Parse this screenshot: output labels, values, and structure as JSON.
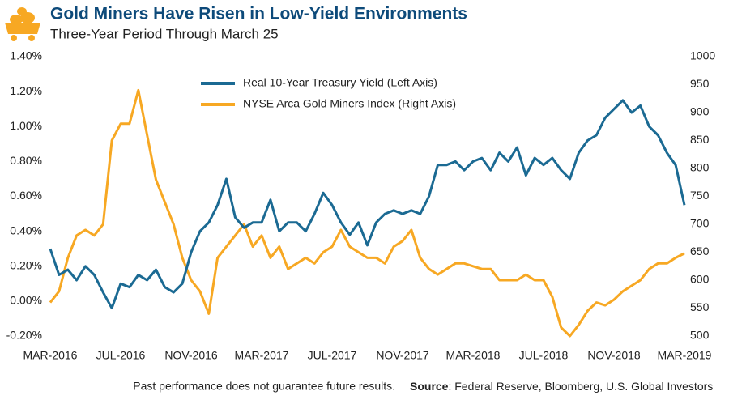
{
  "chart_data": {
    "type": "line",
    "title": "Gold Miners Have Risen in Low-Yield Environments",
    "subtitle": "Three-Year Period Through March 25",
    "footer_note": "Past performance does not guarantee future results.",
    "source_label": "Source",
    "source_text": ": Federal Reserve, Bloomberg, U.S. Global Investors",
    "categories": [
      "MAR-2016",
      null,
      null,
      null,
      null,
      null,
      null,
      null,
      "JUL-2016",
      null,
      null,
      null,
      null,
      null,
      null,
      null,
      "NOV-2016",
      null,
      null,
      null,
      null,
      null,
      null,
      null,
      "MAR-2017",
      null,
      null,
      null,
      null,
      null,
      null,
      null,
      "JUL-2017",
      null,
      null,
      null,
      null,
      null,
      null,
      null,
      "NOV-2017",
      null,
      null,
      null,
      null,
      null,
      null,
      null,
      "MAR-2018",
      null,
      null,
      null,
      null,
      null,
      null,
      null,
      "JUL-2018",
      null,
      null,
      null,
      null,
      null,
      null,
      null,
      "NOV-2018",
      null,
      null,
      null,
      null,
      null,
      null,
      null,
      "MAR-2019"
    ],
    "ylim": [
      -0.2,
      1.4
    ],
    "yticks": [
      {
        "value": -0.2,
        "label": "-0.20%"
      },
      {
        "value": 0,
        "label": "0.00%"
      },
      {
        "value": 0.2,
        "label": "0.20%"
      },
      {
        "value": 0.4,
        "label": "0.40%"
      },
      {
        "value": 0.6,
        "label": "0.60%"
      },
      {
        "value": 0.8,
        "label": "0.80%"
      },
      {
        "value": 1.0,
        "label": "1.00%"
      },
      {
        "value": 1.2,
        "label": "1.20%"
      },
      {
        "value": 1.4,
        "label": "1.40%"
      }
    ],
    "y2lim": [
      500,
      1000
    ],
    "y2ticks": [
      500,
      550,
      600,
      650,
      700,
      750,
      800,
      850,
      900,
      950,
      1000
    ],
    "legend": "upper left",
    "series": [
      {
        "name": "Real 10-Year Treasury Yield (Left Axis)",
        "color": "#1b6a93",
        "axis": "y",
        "values": [
          0.3,
          0.15,
          0.18,
          0.12,
          0.2,
          0.15,
          0.05,
          -0.04,
          0.1,
          0.08,
          0.15,
          0.12,
          0.18,
          0.08,
          0.05,
          0.1,
          0.28,
          0.4,
          0.45,
          0.55,
          0.7,
          0.48,
          0.42,
          0.45,
          0.45,
          0.58,
          0.4,
          0.45,
          0.45,
          0.4,
          0.5,
          0.62,
          0.55,
          0.45,
          0.38,
          0.45,
          0.32,
          0.45,
          0.5,
          0.52,
          0.5,
          0.52,
          0.5,
          0.6,
          0.78,
          0.78,
          0.8,
          0.75,
          0.8,
          0.82,
          0.75,
          0.85,
          0.8,
          0.88,
          0.72,
          0.82,
          0.78,
          0.82,
          0.75,
          0.7,
          0.85,
          0.92,
          0.95,
          1.05,
          1.1,
          1.15,
          1.08,
          1.12,
          1.0,
          0.95,
          0.85,
          0.78,
          0.55
        ]
      },
      {
        "name": "NYSE Arca Gold Miners Index (Right Axis)",
        "color": "#f7a823",
        "axis": "y2",
        "values": [
          560,
          580,
          640,
          680,
          690,
          680,
          700,
          850,
          880,
          880,
          940,
          860,
          780,
          740,
          700,
          640,
          600,
          580,
          540,
          640,
          660,
          680,
          700,
          660,
          680,
          640,
          660,
          620,
          630,
          640,
          630,
          650,
          660,
          690,
          660,
          650,
          640,
          640,
          630,
          660,
          670,
          690,
          640,
          620,
          610,
          620,
          630,
          630,
          625,
          620,
          620,
          600,
          600,
          600,
          610,
          600,
          600,
          570,
          515,
          500,
          520,
          545,
          560,
          555,
          565,
          580,
          590,
          600,
          620,
          630,
          630,
          640,
          648
        ]
      }
    ]
  }
}
